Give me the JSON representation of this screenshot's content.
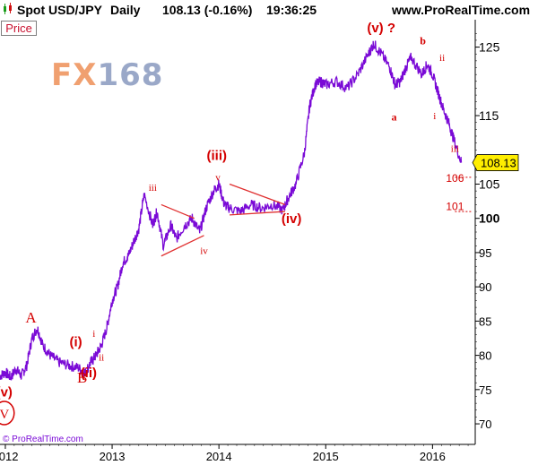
{
  "header": {
    "title": "Spot USD/JPY",
    "period": "Daily",
    "last_price": "108.13 (-0.16%)",
    "time": "19:36:25",
    "site": "www.ProRealTime.com"
  },
  "price_tab": "Price",
  "watermark": {
    "left": "FX",
    "right": "168"
  },
  "copyright": "© ProRealTime.com",
  "current_price_label": "108.13",
  "colors": {
    "price_line": "#7a0ad6",
    "annotation": "#d40000",
    "triangle": "#e03030",
    "axis": "#000000",
    "watermark_left": "#f0a070",
    "watermark_right": "#9aa8c8"
  },
  "chart_data": {
    "type": "line",
    "ylim": [
      67,
      129
    ],
    "yticks": [
      70,
      75,
      80,
      85,
      90,
      95,
      100,
      105,
      115,
      125
    ],
    "ytick_labels": [
      "70",
      "75",
      "80",
      "85",
      "90",
      "95",
      "100",
      "105",
      "115",
      "125"
    ],
    "xlim": [
      2011.95,
      2016.4
    ],
    "xticks": [
      2012,
      2013,
      2014,
      2015,
      2016
    ],
    "xtick_labels": [
      "2012",
      "2013",
      "2014",
      "2015",
      "2016"
    ],
    "series": [
      {
        "x": [
          2011.95,
          2012.0,
          2012.05,
          2012.1,
          2012.15,
          2012.2,
          2012.25,
          2012.3,
          2012.35,
          2012.42,
          2012.5,
          2012.6,
          2012.68,
          2012.75,
          2012.8,
          2012.85,
          2012.9,
          2012.95,
          2013.0,
          2013.05,
          2013.1,
          2013.15,
          2013.2,
          2013.25,
          2013.3,
          2013.38,
          2013.42,
          2013.48,
          2013.55,
          2013.6,
          2013.68,
          2013.75,
          2013.82,
          2013.88,
          2013.95,
          2014.0,
          2014.05,
          2014.1,
          2014.2,
          2014.3,
          2014.4,
          2014.5,
          2014.6,
          2014.65,
          2014.72,
          2014.8,
          2014.85,
          2014.9,
          2014.95,
          2015.0,
          2015.1,
          2015.2,
          2015.3,
          2015.4,
          2015.45,
          2015.52,
          2015.6,
          2015.65,
          2015.7,
          2015.75,
          2015.8,
          2015.9,
          2015.95,
          2016.0,
          2016.05,
          2016.1,
          2016.15,
          2016.2,
          2016.27
        ],
        "y": [
          77.0,
          77.5,
          76.8,
          78.0,
          77.0,
          78.5,
          82.5,
          84.0,
          81.5,
          80.0,
          79.0,
          78.5,
          78.2,
          77.5,
          79.0,
          80.0,
          81.5,
          84.0,
          88.0,
          90.0,
          93.5,
          94.5,
          96.5,
          98.5,
          103.5,
          99.0,
          101.0,
          96.0,
          99.0,
          97.0,
          99.0,
          100.0,
          98.0,
          101.5,
          104.0,
          105.0,
          102.0,
          101.5,
          101.0,
          102.0,
          101.5,
          102.0,
          101.2,
          103.0,
          105.0,
          109.5,
          116.5,
          119.5,
          120.0,
          119.5,
          120.0,
          119.0,
          121.0,
          124.0,
          125.5,
          124.0,
          122.0,
          119.5,
          120.0,
          122.0,
          123.5,
          121.0,
          122.5,
          121.0,
          118.5,
          116.0,
          114.0,
          111.5,
          108.13
        ]
      }
    ],
    "annotations": [
      {
        "text": "(v)",
        "x": 2011.99,
        "y": 74.0
      },
      {
        "text": "A",
        "x": 2012.24,
        "y": 84.8
      },
      {
        "text": "B",
        "x": 2012.72,
        "y": 76.0
      },
      {
        "text": "(i)",
        "x": 2012.66,
        "y": 81.3
      },
      {
        "text": "i",
        "x": 2012.83,
        "y": 82.7
      },
      {
        "text": "ii",
        "x": 2012.9,
        "y": 79.2
      },
      {
        "text": "(ii)",
        "x": 2012.78,
        "y": 76.8
      },
      {
        "text": "iii",
        "x": 2013.38,
        "y": 104.0
      },
      {
        "text": "iv",
        "x": 2013.86,
        "y": 94.8
      },
      {
        "text": "(iii)",
        "x": 2013.98,
        "y": 108.5
      },
      {
        "text": "v",
        "x": 2013.99,
        "y": 105.5
      },
      {
        "text": "(iv)",
        "x": 2014.68,
        "y": 99.3
      },
      {
        "text": "(v) ?",
        "x": 2015.52,
        "y": 127.2
      },
      {
        "text": "a",
        "x": 2015.64,
        "y": 114.3
      },
      {
        "text": "b",
        "x": 2015.91,
        "y": 125.4
      },
      {
        "text": "ii",
        "x": 2016.09,
        "y": 123.0
      },
      {
        "text": "i",
        "x": 2016.02,
        "y": 114.5
      },
      {
        "text": "iii",
        "x": 2016.21,
        "y": 109.7
      },
      {
        "text": "106",
        "x": 2016.21,
        "y": 105.3
      },
      {
        "text": "101",
        "x": 2016.21,
        "y": 101.2
      }
    ],
    "circled_label": {
      "text": "V",
      "x": 2011.99,
      "y": 70.8
    },
    "triangle_lines": [
      {
        "x": [
          2013.46,
          2013.77
        ],
        "y": [
          102.0,
          100.0
        ]
      },
      {
        "x": [
          2013.46,
          2013.86
        ],
        "y": [
          94.5,
          97.5
        ]
      },
      {
        "x": [
          2014.1,
          2014.62
        ],
        "y": [
          105.0,
          102.0
        ]
      },
      {
        "x": [
          2014.1,
          2014.62
        ],
        "y": [
          100.5,
          101.0
        ]
      }
    ],
    "level_lines": [
      {
        "y": 106.0,
        "x": [
          2016.21,
          2016.4
        ]
      },
      {
        "y": 101.0,
        "x": [
          2016.21,
          2016.4
        ]
      }
    ],
    "grid": false
  }
}
